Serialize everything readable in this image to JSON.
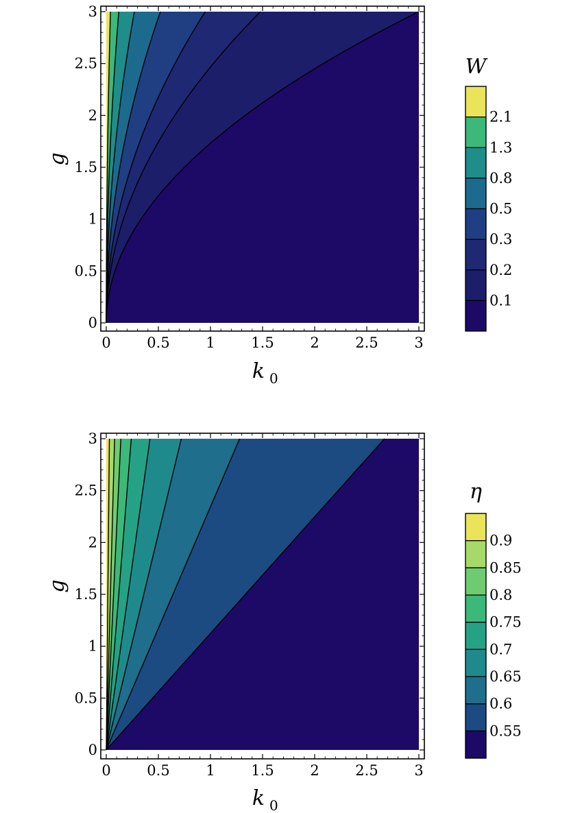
{
  "chart_data": [
    {
      "type": "contour",
      "title": "",
      "xlabel": "k",
      "xlabel_sub": "0",
      "ylabel": "g",
      "xlim": [
        0,
        3
      ],
      "ylim": [
        0,
        3
      ],
      "xticks": [
        "0",
        "0.5",
        "1",
        "1.5",
        "2",
        "2.5",
        "3"
      ],
      "yticks": [
        "0",
        "0.5",
        "1",
        "1.5",
        "2",
        "2.5",
        "3"
      ],
      "contour_lines_at_top_edge_k0": [
        0.04,
        0.12,
        0.27,
        0.52,
        0.95,
        1.48,
        3.0
      ],
      "colorbar": {
        "title": "W",
        "levels": [
          "2.1",
          "1.3",
          "0.8",
          "0.5",
          "0.3",
          "0.2",
          "0.1"
        ],
        "colors": [
          "#e9e45a",
          "#3cb87a",
          "#1f8d8a",
          "#1c6b8e",
          "#1f3f82",
          "#1e2873",
          "#1c1e6a",
          "#1c0a66"
        ]
      },
      "grid": false
    },
    {
      "type": "contour",
      "title": "",
      "xlabel": "k",
      "xlabel_sub": "0",
      "ylabel": "g",
      "xlim": [
        0,
        3
      ],
      "ylim": [
        0,
        3
      ],
      "xticks": [
        "0",
        "0.5",
        "1",
        "1.5",
        "2",
        "2.5",
        "3"
      ],
      "yticks": [
        "0",
        "0.5",
        "1",
        "1.5",
        "2",
        "2.5",
        "3"
      ],
      "contour_lines_at_top_edge_k0": [
        0.03,
        0.08,
        0.14,
        0.24,
        0.42,
        0.72,
        1.28,
        2.67
      ],
      "colorbar": {
        "title": "η",
        "levels": [
          "0.9",
          "0.85",
          "0.8",
          "0.75",
          "0.7",
          "0.65",
          "0.6",
          "0.55"
        ],
        "colors": [
          "#e9e45a",
          "#a6d96a",
          "#6fcb70",
          "#3cb87a",
          "#25a285",
          "#1f8a8c",
          "#1f6e8c",
          "#1b4b80",
          "#1c0a66"
        ]
      },
      "grid": false
    }
  ]
}
